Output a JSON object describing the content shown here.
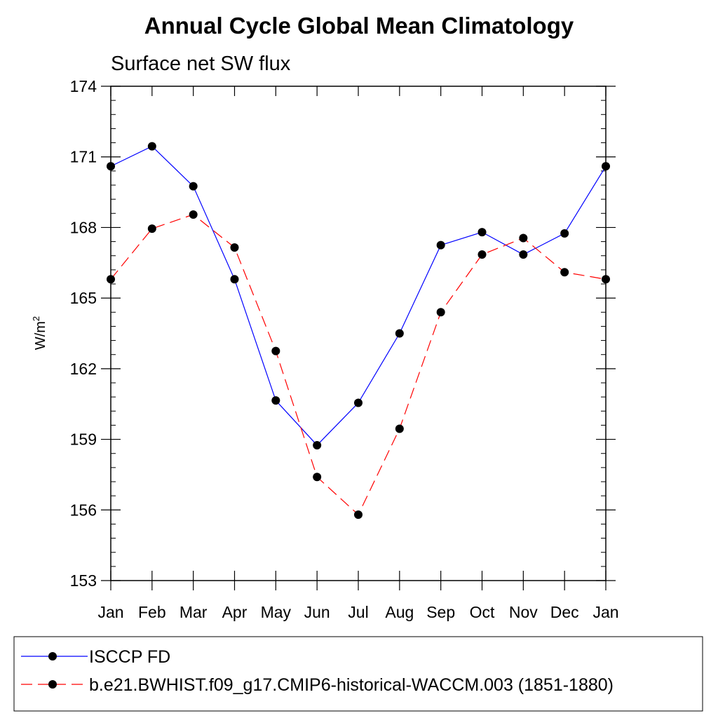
{
  "chart_data": {
    "type": "line",
    "title": "Annual Cycle Global Mean Climatology",
    "subtitle": "Surface net SW flux",
    "ylabel": "W/m",
    "ylabel_superscript": "2",
    "categories": [
      "Jan",
      "Feb",
      "Mar",
      "Apr",
      "May",
      "Jun",
      "Jul",
      "Aug",
      "Sep",
      "Oct",
      "Nov",
      "Dec",
      "Jan"
    ],
    "ylim": [
      153,
      174
    ],
    "yticks": [
      153,
      156,
      159,
      162,
      165,
      168,
      171,
      174
    ],
    "series": [
      {
        "name": "ISCCP FD",
        "color": "#0000ff",
        "dash": "solid",
        "values": [
          170.6,
          171.45,
          169.75,
          165.8,
          160.65,
          158.75,
          160.55,
          163.5,
          167.25,
          167.8,
          166.85,
          167.75,
          170.6
        ]
      },
      {
        "name": "b.e21.BWHIST.f09_g17.CMIP6-historical-WACCM.003 (1851-1880)",
        "color": "#ff0000",
        "dash": "dashed",
        "values": [
          165.8,
          167.95,
          168.55,
          167.15,
          162.75,
          157.4,
          155.8,
          159.45,
          164.4,
          166.85,
          167.55,
          166.1,
          165.8
        ]
      }
    ],
    "legend_position": "bottom"
  }
}
